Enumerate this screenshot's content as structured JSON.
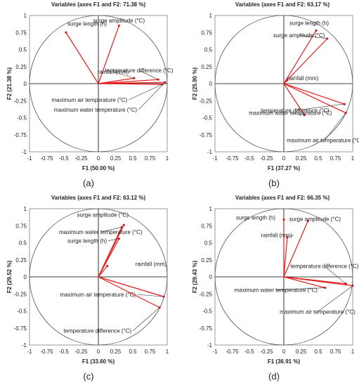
{
  "colors": {
    "vector": "#e31a1c",
    "axis": "#000000",
    "circle": "#555555",
    "text": "#222222"
  },
  "chart_data": [
    {
      "type": "scatter",
      "panel_label": "(a)",
      "title": "Variables (axes F1 and F2: 71.38 %)",
      "xlabel": "F1 (50.00 %)",
      "ylabel": "F2 (21.38 %)",
      "xlim": [
        -1,
        1
      ],
      "ylim": [
        -1,
        1
      ],
      "xticks": [
        "-1",
        "-0.75",
        "-0.5",
        "-0.25",
        "0",
        "0.25",
        "0.5",
        "0.75",
        "1"
      ],
      "yticks": [
        "-1",
        "-0.75",
        "-0.5",
        "-0.25",
        "0",
        "0.25",
        "0.5",
        "0.75",
        "1"
      ],
      "circle": "unit correlation circle",
      "points": [
        {
          "label": "surge length (h)",
          "x": -0.47,
          "y": 0.75
        },
        {
          "label": "surge amplitude (°C)",
          "x": 0.3,
          "y": 0.85
        },
        {
          "label": "temperature difference (°C)",
          "x": 0.87,
          "y": 0.06
        },
        {
          "label": "rainfall (mm)",
          "x": 0.52,
          "y": 0.08
        },
        {
          "label": "maximum air temperature (°C)",
          "x": 0.93,
          "y": -0.01
        },
        {
          "label": "maximum water temperature (°C)",
          "x": 0.97,
          "y": 0.02
        }
      ]
    },
    {
      "type": "scatter",
      "panel_label": "(b)",
      "title": "Variables (axes F1 and F2: 63.17 %)",
      "xlabel": "F1 (37.27 %)",
      "ylabel": "F2 (25.90 %)",
      "xlim": [
        -1,
        1
      ],
      "ylim": [
        -1,
        1
      ],
      "xticks": [
        "-1",
        "-0.75",
        "-0.5",
        "-0.25",
        "0",
        "0.25",
        "0.5",
        "0.75",
        "1"
      ],
      "yticks": [
        "-1",
        "-0.75",
        "-0.5",
        "-0.25",
        "0",
        "0.25",
        "0.5",
        "0.75",
        "1"
      ],
      "circle": "unit correlation circle",
      "points": [
        {
          "label": "surge length (h)",
          "x": 0.47,
          "y": 0.78
        },
        {
          "label": "surge amplitude (°C)",
          "x": 0.63,
          "y": 0.66
        },
        {
          "label": "rainfall (mm)",
          "x": 0.05,
          "y": 0.05
        },
        {
          "label": "temperature difference (°C)",
          "x": 0.88,
          "y": -0.3
        },
        {
          "label": "maximum water temperature (°C)",
          "x": 0.3,
          "y": -0.46
        },
        {
          "label": "maximum air temperature (°C)",
          "x": 0.9,
          "y": -0.43
        }
      ]
    },
    {
      "type": "scatter",
      "panel_label": "(c)",
      "title": "Variables (axes F1 and F2: 63.12 %)",
      "xlabel": "F1 (33.60 %)",
      "ylabel": "F2 (29.52 %)",
      "xlim": [
        -1,
        1
      ],
      "ylim": [
        -1,
        1
      ],
      "xticks": [
        "-1",
        "-0.75",
        "-0.5",
        "-0.25",
        "0",
        "0.25",
        "0.5",
        "0.75",
        "1"
      ],
      "yticks": [
        "-1",
        "-0.75",
        "-0.5",
        "-0.25",
        "0",
        "0.25",
        "0.5",
        "0.75",
        "1"
      ],
      "circle": "unit correlation circle",
      "points": [
        {
          "label": "surge amplitude (°C)",
          "x": 0.37,
          "y": 0.76
        },
        {
          "label": "maximum water temperature (°C)",
          "x": 0.34,
          "y": 0.73
        },
        {
          "label": "surge length (h)",
          "x": 0.3,
          "y": 0.56
        },
        {
          "label": "rainfall (mm)",
          "x": 0.13,
          "y": 0.16
        },
        {
          "label": "maximum air temperature (°C)",
          "x": 0.95,
          "y": -0.29
        },
        {
          "label": "temperature difference (°C)",
          "x": 0.89,
          "y": -0.45
        }
      ]
    },
    {
      "type": "scatter",
      "panel_label": "(d)",
      "title": "Variables (axes F1 and F2: 66.35 %)",
      "xlabel": "F1 (36.91 %)",
      "ylabel": "F2 (29.43 %)",
      "xlim": [
        -1,
        1
      ],
      "ylim": [
        -1,
        1
      ],
      "xticks": [
        "-1",
        "-0.75",
        "-0.5",
        "-0.25",
        "0",
        "0.25",
        "0.5",
        "0.75",
        "1"
      ],
      "yticks": [
        "-1",
        "-0.75",
        "-0.5",
        "-0.25",
        "0",
        "0.25",
        "0.5",
        "0.75",
        "1"
      ],
      "circle": "unit correlation circle",
      "points": [
        {
          "label": "surge length (h)",
          "x": 0.0,
          "y": 0.84
        },
        {
          "label": "surge amplitude (°C)",
          "x": 0.35,
          "y": 0.82
        },
        {
          "label": "rainfall (mm)",
          "x": 0.05,
          "y": 0.58
        },
        {
          "label": "temperature difference (°C)",
          "x": 0.9,
          "y": -0.1
        },
        {
          "label": "maximum water temperature (°C)",
          "x": 0.6,
          "y": -0.16
        },
        {
          "label": "maximum air temperature (°C)",
          "x": 1.0,
          "y": -0.13
        }
      ]
    }
  ]
}
